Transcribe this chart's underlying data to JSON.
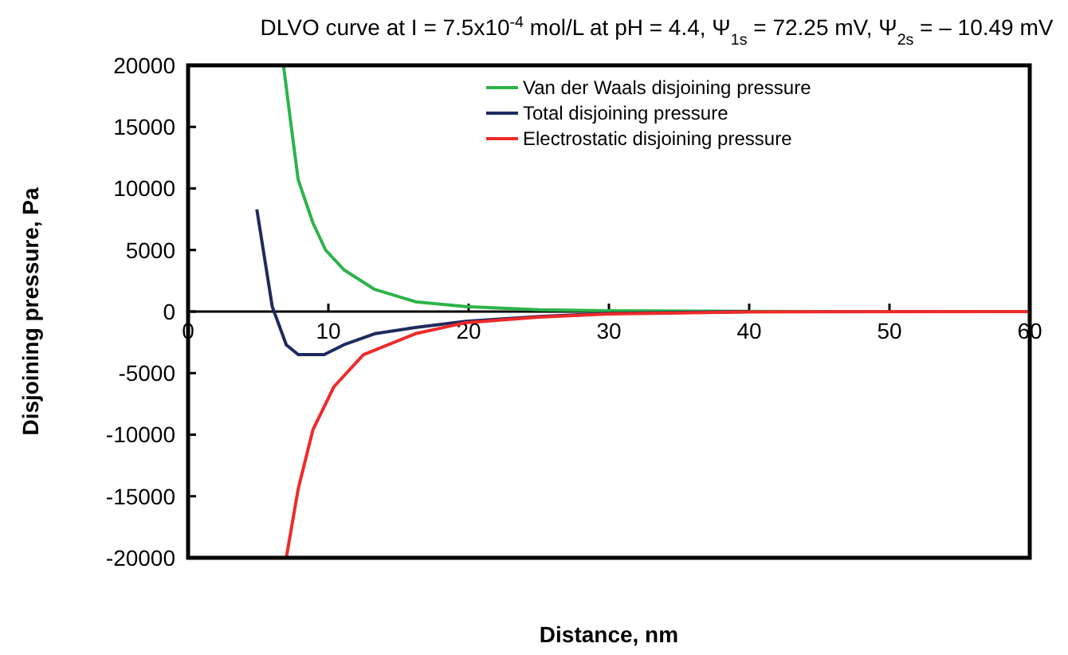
{
  "chart_data": {
    "type": "line",
    "title": "DLVO curve at I = 7.5x10$^{-4}$ mol/L at pH = 4.4, Ψ$_{1s}$ = 72.25 mV, Ψ$_{2s}$ = – 10.49 mV",
    "xlabel": "Distance, nm",
    "ylabel": "Disjoining pressure, Pa",
    "xlim": [
      0,
      60
    ],
    "xticks": [
      0,
      10,
      20,
      30,
      40,
      50,
      60
    ],
    "ylim": [
      -20000,
      20000
    ],
    "yticks": [
      -20000,
      -15000,
      -10000,
      -5000,
      0,
      5000,
      10000,
      15000,
      20000
    ],
    "grid": false,
    "legend": "top",
    "marker": "none",
    "line_style": "solid",
    "series": [
      {
        "name": "Van der Waals disjoining pressure",
        "color": "#2db34a",
        "x": [
          6.8,
          7.3,
          7.85,
          8.9,
          9.8,
          11.1,
          13.3,
          16.2,
          19.8,
          25,
          30,
          40,
          46
        ],
        "values": [
          20000,
          15500,
          10700,
          7200,
          5000,
          3400,
          1800,
          800,
          400,
          150,
          60,
          20,
          0
        ]
      },
      {
        "name": "Total disjoining pressure",
        "color": "#1f2a5e",
        "x": [
          4.9,
          6.0,
          7.0,
          7.85,
          9.7,
          11.1,
          13.3,
          16.2,
          19.8,
          25,
          30,
          40
        ],
        "values": [
          8300,
          400,
          -2700,
          -3500,
          -3500,
          -2700,
          -1800,
          -1300,
          -800,
          -400,
          -150,
          0
        ]
      },
      {
        "name": "Electrostatic disjoining pressure",
        "color": "#ee2a2a",
        "x": [
          7.0,
          7.85,
          8.9,
          10.4,
          12.5,
          16.2,
          19.8,
          25,
          30,
          40,
          60
        ],
        "values": [
          -20000,
          -14400,
          -9600,
          -6100,
          -3500,
          -1800,
          -900,
          -450,
          -200,
          -30,
          0
        ]
      }
    ]
  }
}
